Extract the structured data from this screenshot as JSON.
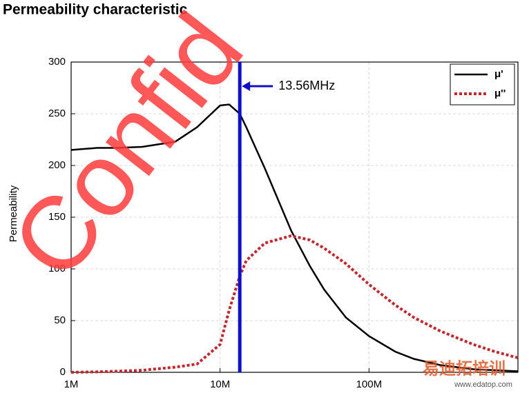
{
  "chart_data": {
    "type": "line",
    "title": "Permeability characteristic",
    "y_label": "Permeability",
    "x_log": true,
    "xlim": [
      1000000,
      1000000000
    ],
    "xticks": [
      {
        "value": 1000000,
        "label": "1M"
      },
      {
        "value": 10000000,
        "label": "10M"
      },
      {
        "value": 100000000,
        "label": "100M"
      }
    ],
    "ylim": [
      0,
      300
    ],
    "yticks": [
      0,
      50,
      100,
      150,
      200,
      250,
      300
    ],
    "grid": true,
    "legend": "top-right",
    "x": [
      1000000,
      1500000,
      2000000,
      3000000,
      5000000,
      7000000,
      10000000,
      11500000,
      13560000,
      15000000,
      20000000,
      30000000,
      40000000,
      50000000,
      70000000,
      100000000,
      150000000,
      200000000,
      300000000,
      500000000,
      700000000,
      1000000000
    ],
    "series": [
      {
        "name": "μ'",
        "color": "#000000",
        "dash": "solid",
        "values": [
          215,
          217,
          217,
          218,
          223,
          237,
          258,
          259,
          250,
          237,
          197,
          137,
          103,
          80,
          53,
          35,
          20,
          13,
          7,
          3,
          2,
          1
        ]
      },
      {
        "name": "μ''",
        "color": "#c0282d",
        "dash": "dotted",
        "values": [
          0,
          0.5,
          1,
          2,
          5,
          8,
          27,
          60,
          93,
          108,
          125,
          132,
          128,
          120,
          105,
          85,
          65,
          53,
          40,
          27,
          20,
          14
        ]
      }
    ],
    "marker_line": {
      "x": 13560000,
      "label": "13.56MHz",
      "color": "#1010c8"
    },
    "watermarks": [
      "Confid",
      "易迪拓培训",
      "www.edatop.com"
    ]
  }
}
